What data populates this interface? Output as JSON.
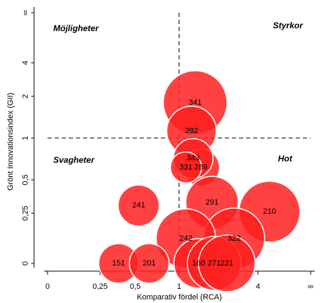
{
  "chart_data": {
    "type": "bubble",
    "xlabel": "Komparativ fördel (RCA)",
    "ylabel": "Grönt Innovationsindex (GII)",
    "scale": "x/(1+x)",
    "xlim": [
      0,
      null
    ],
    "ylim": [
      0,
      null
    ],
    "xticks": [
      0,
      {
        "value": 0.25,
        "label": "0,25"
      },
      {
        "value": 0.5,
        "label": "0,5"
      },
      1,
      2,
      4,
      {
        "value": null,
        "label": "∞"
      }
    ],
    "yticks": [
      0,
      {
        "value": 0.25,
        "label": "0,25"
      },
      {
        "value": 0.5,
        "label": "0,5"
      },
      1,
      2,
      4,
      {
        "value": null,
        "label": "∞"
      }
    ],
    "reference_lines": {
      "x": 1,
      "y": 1
    },
    "annotations": [
      "Möjligheter",
      "Styrkor",
      "Svagheter",
      "Hot"
    ],
    "color": "#ff2020",
    "labels": [
      "341",
      "292",
      "289",
      "343",
      "331",
      "291",
      "241",
      "210",
      "322",
      "242",
      "151",
      "201",
      "160",
      "271",
      "221"
    ],
    "x": [
      1.28,
      1.21,
      1.4,
      1.24,
      1.11,
      1.67,
      0.53,
      5.4,
      2.44,
      1.11,
      0.37,
      0.63,
      1.35,
      1.73,
      2.14
    ],
    "y": [
      1.79,
      1.12,
      0.62,
      0.72,
      0.62,
      0.32,
      0.3,
      0.26,
      0.11,
      0.11,
      0,
      0,
      0,
      0,
      0
    ],
    "sizes": [
      202,
      122,
      68,
      78,
      48,
      137,
      84,
      185,
      185,
      176,
      78,
      78,
      122,
      144,
      160
    ]
  }
}
